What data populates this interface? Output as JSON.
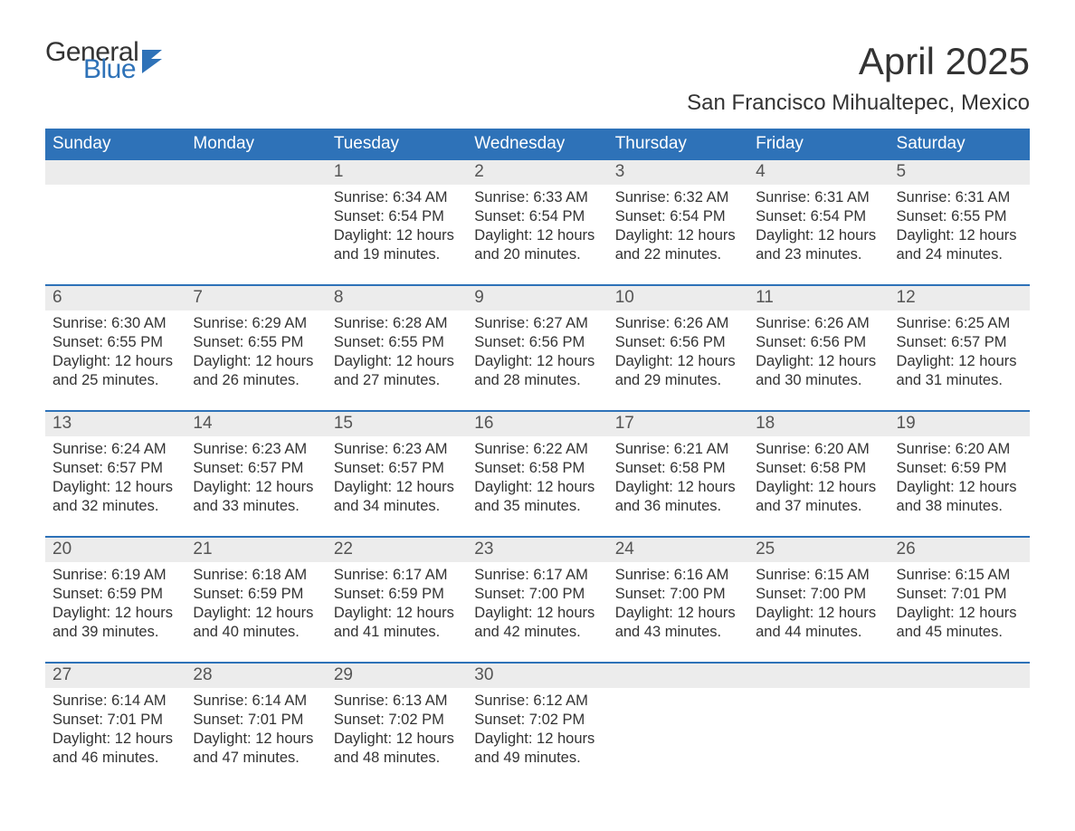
{
  "logo": {
    "word1": "General",
    "word2": "Blue"
  },
  "title": "April 2025",
  "location": "San Francisco Mihualtepec, Mexico",
  "colors": {
    "brand_blue": "#2e72b8",
    "row_gray": "#ececec",
    "text": "#333333",
    "bg": "#ffffff"
  },
  "dow": [
    "Sunday",
    "Monday",
    "Tuesday",
    "Wednesday",
    "Thursday",
    "Friday",
    "Saturday"
  ],
  "weeks": [
    [
      {
        "n": "",
        "sr": "",
        "ss": "",
        "dl": ""
      },
      {
        "n": "",
        "sr": "",
        "ss": "",
        "dl": ""
      },
      {
        "n": "1",
        "sr": "Sunrise: 6:34 AM",
        "ss": "Sunset: 6:54 PM",
        "dl": "Daylight: 12 hours and 19 minutes."
      },
      {
        "n": "2",
        "sr": "Sunrise: 6:33 AM",
        "ss": "Sunset: 6:54 PM",
        "dl": "Daylight: 12 hours and 20 minutes."
      },
      {
        "n": "3",
        "sr": "Sunrise: 6:32 AM",
        "ss": "Sunset: 6:54 PM",
        "dl": "Daylight: 12 hours and 22 minutes."
      },
      {
        "n": "4",
        "sr": "Sunrise: 6:31 AM",
        "ss": "Sunset: 6:54 PM",
        "dl": "Daylight: 12 hours and 23 minutes."
      },
      {
        "n": "5",
        "sr": "Sunrise: 6:31 AM",
        "ss": "Sunset: 6:55 PM",
        "dl": "Daylight: 12 hours and 24 minutes."
      }
    ],
    [
      {
        "n": "6",
        "sr": "Sunrise: 6:30 AM",
        "ss": "Sunset: 6:55 PM",
        "dl": "Daylight: 12 hours and 25 minutes."
      },
      {
        "n": "7",
        "sr": "Sunrise: 6:29 AM",
        "ss": "Sunset: 6:55 PM",
        "dl": "Daylight: 12 hours and 26 minutes."
      },
      {
        "n": "8",
        "sr": "Sunrise: 6:28 AM",
        "ss": "Sunset: 6:55 PM",
        "dl": "Daylight: 12 hours and 27 minutes."
      },
      {
        "n": "9",
        "sr": "Sunrise: 6:27 AM",
        "ss": "Sunset: 6:56 PM",
        "dl": "Daylight: 12 hours and 28 minutes."
      },
      {
        "n": "10",
        "sr": "Sunrise: 6:26 AM",
        "ss": "Sunset: 6:56 PM",
        "dl": "Daylight: 12 hours and 29 minutes."
      },
      {
        "n": "11",
        "sr": "Sunrise: 6:26 AM",
        "ss": "Sunset: 6:56 PM",
        "dl": "Daylight: 12 hours and 30 minutes."
      },
      {
        "n": "12",
        "sr": "Sunrise: 6:25 AM",
        "ss": "Sunset: 6:57 PM",
        "dl": "Daylight: 12 hours and 31 minutes."
      }
    ],
    [
      {
        "n": "13",
        "sr": "Sunrise: 6:24 AM",
        "ss": "Sunset: 6:57 PM",
        "dl": "Daylight: 12 hours and 32 minutes."
      },
      {
        "n": "14",
        "sr": "Sunrise: 6:23 AM",
        "ss": "Sunset: 6:57 PM",
        "dl": "Daylight: 12 hours and 33 minutes."
      },
      {
        "n": "15",
        "sr": "Sunrise: 6:23 AM",
        "ss": "Sunset: 6:57 PM",
        "dl": "Daylight: 12 hours and 34 minutes."
      },
      {
        "n": "16",
        "sr": "Sunrise: 6:22 AM",
        "ss": "Sunset: 6:58 PM",
        "dl": "Daylight: 12 hours and 35 minutes."
      },
      {
        "n": "17",
        "sr": "Sunrise: 6:21 AM",
        "ss": "Sunset: 6:58 PM",
        "dl": "Daylight: 12 hours and 36 minutes."
      },
      {
        "n": "18",
        "sr": "Sunrise: 6:20 AM",
        "ss": "Sunset: 6:58 PM",
        "dl": "Daylight: 12 hours and 37 minutes."
      },
      {
        "n": "19",
        "sr": "Sunrise: 6:20 AM",
        "ss": "Sunset: 6:59 PM",
        "dl": "Daylight: 12 hours and 38 minutes."
      }
    ],
    [
      {
        "n": "20",
        "sr": "Sunrise: 6:19 AM",
        "ss": "Sunset: 6:59 PM",
        "dl": "Daylight: 12 hours and 39 minutes."
      },
      {
        "n": "21",
        "sr": "Sunrise: 6:18 AM",
        "ss": "Sunset: 6:59 PM",
        "dl": "Daylight: 12 hours and 40 minutes."
      },
      {
        "n": "22",
        "sr": "Sunrise: 6:17 AM",
        "ss": "Sunset: 6:59 PM",
        "dl": "Daylight: 12 hours and 41 minutes."
      },
      {
        "n": "23",
        "sr": "Sunrise: 6:17 AM",
        "ss": "Sunset: 7:00 PM",
        "dl": "Daylight: 12 hours and 42 minutes."
      },
      {
        "n": "24",
        "sr": "Sunrise: 6:16 AM",
        "ss": "Sunset: 7:00 PM",
        "dl": "Daylight: 12 hours and 43 minutes."
      },
      {
        "n": "25",
        "sr": "Sunrise: 6:15 AM",
        "ss": "Sunset: 7:00 PM",
        "dl": "Daylight: 12 hours and 44 minutes."
      },
      {
        "n": "26",
        "sr": "Sunrise: 6:15 AM",
        "ss": "Sunset: 7:01 PM",
        "dl": "Daylight: 12 hours and 45 minutes."
      }
    ],
    [
      {
        "n": "27",
        "sr": "Sunrise: 6:14 AM",
        "ss": "Sunset: 7:01 PM",
        "dl": "Daylight: 12 hours and 46 minutes."
      },
      {
        "n": "28",
        "sr": "Sunrise: 6:14 AM",
        "ss": "Sunset: 7:01 PM",
        "dl": "Daylight: 12 hours and 47 minutes."
      },
      {
        "n": "29",
        "sr": "Sunrise: 6:13 AM",
        "ss": "Sunset: 7:02 PM",
        "dl": "Daylight: 12 hours and 48 minutes."
      },
      {
        "n": "30",
        "sr": "Sunrise: 6:12 AM",
        "ss": "Sunset: 7:02 PM",
        "dl": "Daylight: 12 hours and 49 minutes."
      },
      {
        "n": "",
        "sr": "",
        "ss": "",
        "dl": ""
      },
      {
        "n": "",
        "sr": "",
        "ss": "",
        "dl": ""
      },
      {
        "n": "",
        "sr": "",
        "ss": "",
        "dl": ""
      }
    ]
  ]
}
